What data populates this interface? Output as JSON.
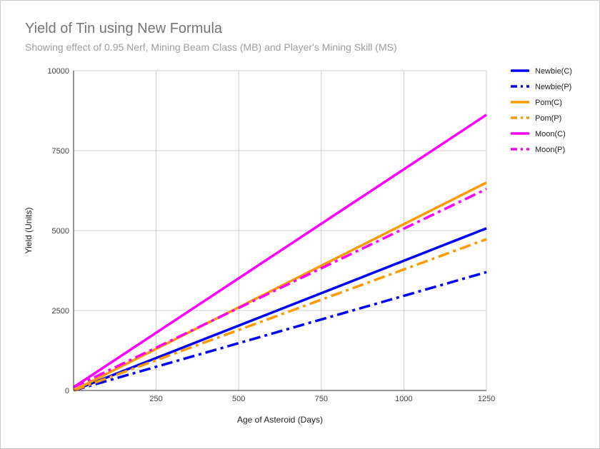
{
  "chart_data": {
    "type": "line",
    "title": "Yield of Tin using New Formula",
    "subtitle": "Showing effect of 0.95 Nerf, Mining Beam Class (MB) and Player's Mining Skill (MS)",
    "xlabel": "Age of Asteroid (Days)",
    "ylabel": "Yield (Units)",
    "xlim": [
      0,
      1250
    ],
    "ylim": [
      0,
      10000
    ],
    "x_ticks": [
      250,
      500,
      750,
      1000,
      1250
    ],
    "y_ticks": [
      0,
      2500,
      5000,
      7500,
      10000
    ],
    "grid": true,
    "legend_position": "right",
    "series": [
      {
        "name": "Newbie(C)",
        "color": "#0000ff",
        "dash": "solid",
        "x": [
          0,
          1250
        ],
        "y": [
          0,
          5070
        ]
      },
      {
        "name": "Newbie(P)",
        "color": "#0000ff",
        "dash": "dashdot",
        "x": [
          0,
          1250
        ],
        "y": [
          0,
          3700
        ]
      },
      {
        "name": "Pom(C)",
        "color": "#ff9900",
        "dash": "solid",
        "x": [
          0,
          1250
        ],
        "y": [
          0,
          6500
        ]
      },
      {
        "name": "Pom(P)",
        "color": "#ff9900",
        "dash": "dashdot",
        "x": [
          0,
          1250
        ],
        "y": [
          0,
          4730
        ]
      },
      {
        "name": "Moon(C)",
        "color": "#ff00ff",
        "dash": "solid",
        "x": [
          0,
          1250
        ],
        "y": [
          100,
          8620
        ]
      },
      {
        "name": "Moon(P)",
        "color": "#ff00ff",
        "dash": "dashdot",
        "x": [
          0,
          1250
        ],
        "y": [
          100,
          6300
        ]
      }
    ]
  }
}
